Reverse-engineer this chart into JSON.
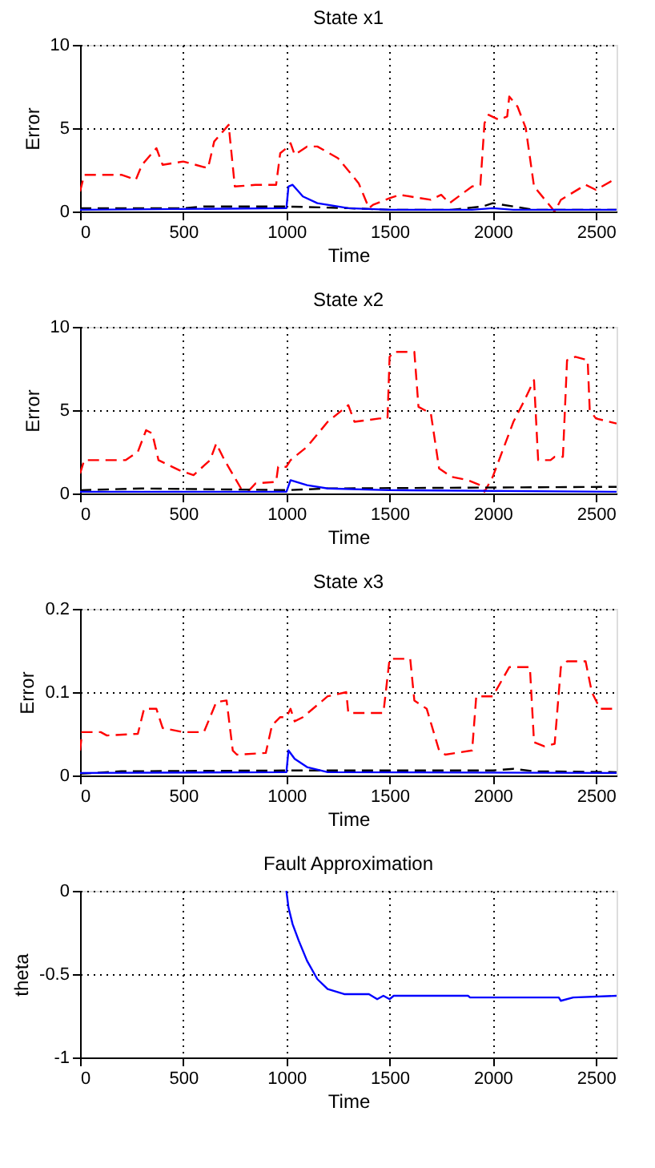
{
  "chart_data": [
    {
      "type": "line",
      "title": "State x1",
      "xlabel": "Time",
      "ylabel": "Error",
      "xlim": [
        0,
        2600
      ],
      "xticks": [
        0,
        500,
        1000,
        1500,
        2000,
        2500
      ],
      "ylim": [
        0,
        10
      ],
      "yticks": [
        0,
        5,
        10
      ],
      "grid": true,
      "marker": "none",
      "series": [
        {
          "color": "#ff0000",
          "line_style": "dashed",
          "x": [
            0,
            20,
            200,
            270,
            300,
            370,
            400,
            500,
            620,
            650,
            720,
            750,
            850,
            950,
            970,
            1000,
            1020,
            1040,
            1100,
            1150,
            1250,
            1350,
            1400,
            1420,
            1500,
            1550,
            1700,
            1750,
            1790,
            1900,
            1940,
            1960,
            1980,
            2030,
            2070,
            2080,
            2120,
            2160,
            2200,
            2280,
            2300,
            2330,
            2450,
            2500,
            2600
          ],
          "values": [
            1.2,
            2.2,
            2.2,
            1.9,
            2.8,
            3.8,
            2.8,
            3.0,
            2.6,
            4.2,
            5.2,
            1.5,
            1.6,
            1.6,
            3.5,
            3.8,
            4.1,
            3.4,
            3.9,
            3.9,
            3.2,
            1.7,
            0.2,
            0.4,
            0.8,
            1.0,
            0.7,
            1.0,
            0.5,
            1.5,
            1.6,
            5.3,
            5.8,
            5.5,
            5.7,
            6.9,
            6.3,
            5.0,
            1.5,
            0.3,
            0,
            0.7,
            1.6,
            1.3,
            2.0
          ]
        },
        {
          "color": "#000000",
          "line_style": "dashed",
          "x": [
            0,
            500,
            600,
            1000,
            1300,
            1500,
            1800,
            1950,
            2000,
            2100,
            2200,
            2600
          ],
          "values": [
            0.2,
            0.2,
            0.3,
            0.3,
            0.2,
            0.1,
            0.1,
            0.3,
            0.5,
            0.3,
            0.1,
            0.1
          ]
        },
        {
          "color": "#0000ff",
          "line_style": "solid",
          "x": [
            0,
            1000,
            1010,
            1030,
            1080,
            1150,
            1300,
            1500,
            1900,
            2000,
            2100,
            2600
          ],
          "values": [
            0.1,
            0.2,
            1.5,
            1.6,
            0.9,
            0.5,
            0.2,
            0.1,
            0.1,
            0.2,
            0.1,
            0.1
          ]
        }
      ]
    },
    {
      "type": "line",
      "title": "State x2",
      "xlabel": "Time",
      "ylabel": "Error",
      "xlim": [
        0,
        2600
      ],
      "xticks": [
        0,
        500,
        1000,
        1500,
        2000,
        2500
      ],
      "ylim": [
        0,
        10
      ],
      "yticks": [
        0,
        5,
        10
      ],
      "grid": true,
      "marker": "none",
      "series": [
        {
          "color": "#ff0000",
          "line_style": "dashed",
          "x": [
            0,
            20,
            220,
            280,
            320,
            350,
            380,
            480,
            550,
            630,
            660,
            700,
            780,
            820,
            850,
            950,
            960,
            1000,
            1020,
            1100,
            1200,
            1300,
            1330,
            1450,
            1490,
            1500,
            1520,
            1620,
            1640,
            1700,
            1740,
            1800,
            1880,
            1940,
            1960,
            2000,
            2100,
            2150,
            2200,
            2220,
            2280,
            2300,
            2340,
            2360,
            2400,
            2460,
            2470,
            2500,
            2600
          ],
          "values": [
            1.2,
            2.0,
            2.0,
            2.5,
            3.8,
            3.6,
            2.0,
            1.4,
            1.1,
            2.0,
            3.0,
            2.0,
            0.3,
            0.2,
            0.6,
            0.7,
            1.6,
            1.6,
            2.0,
            2.8,
            4.3,
            5.3,
            4.3,
            4.5,
            4.5,
            8.2,
            8.5,
            8.5,
            5.2,
            4.8,
            1.5,
            1.0,
            0.8,
            0.5,
            0.1,
            1.0,
            4.3,
            5.5,
            6.8,
            2.0,
            2.0,
            2.2,
            2.2,
            8.0,
            8.2,
            8.0,
            5.0,
            4.5,
            4.2
          ]
        },
        {
          "color": "#000000",
          "line_style": "dashed",
          "x": [
            0,
            300,
            1000,
            1200,
            2600
          ],
          "values": [
            0.2,
            0.3,
            0.2,
            0.3,
            0.4
          ]
        },
        {
          "color": "#0000ff",
          "line_style": "solid",
          "x": [
            0,
            700,
            1000,
            1020,
            1100,
            1200,
            1500,
            2600
          ],
          "values": [
            0.1,
            0.1,
            0.1,
            0.8,
            0.5,
            0.3,
            0.2,
            0.1
          ]
        }
      ]
    },
    {
      "type": "line",
      "title": "State x3",
      "xlabel": "Time",
      "ylabel": "Error",
      "xlim": [
        0,
        2600
      ],
      "xticks": [
        0,
        500,
        1000,
        1500,
        2000,
        2500
      ],
      "ylim": [
        0,
        0.2
      ],
      "yticks": [
        0,
        0.1,
        0.2
      ],
      "grid": true,
      "marker": "none",
      "series": [
        {
          "color": "#ff0000",
          "line_style": "dashed",
          "x": [
            0,
            10,
            100,
            130,
            280,
            310,
            370,
            400,
            500,
            600,
            660,
            710,
            740,
            760,
            900,
            930,
            970,
            1000,
            1020,
            1040,
            1080,
            1200,
            1290,
            1300,
            1470,
            1500,
            1600,
            1620,
            1680,
            1740,
            1770,
            1900,
            1920,
            2000,
            2080,
            2180,
            2200,
            2250,
            2300,
            2330,
            2360,
            2450,
            2480,
            2520,
            2600
          ],
          "values": [
            0.03,
            0.052,
            0.052,
            0.048,
            0.05,
            0.08,
            0.08,
            0.057,
            0.052,
            0.052,
            0.088,
            0.09,
            0.03,
            0.025,
            0.027,
            0.06,
            0.07,
            0.07,
            0.08,
            0.065,
            0.07,
            0.095,
            0.1,
            0.075,
            0.075,
            0.14,
            0.14,
            0.09,
            0.08,
            0.03,
            0.025,
            0.03,
            0.095,
            0.095,
            0.13,
            0.13,
            0.04,
            0.035,
            0.038,
            0.13,
            0.137,
            0.137,
            0.1,
            0.08,
            0.08
          ]
        },
        {
          "color": "#000000",
          "line_style": "dashed",
          "x": [
            0,
            200,
            1000,
            2000,
            2100,
            2200,
            2600
          ],
          "values": [
            0.002,
            0.005,
            0.006,
            0.006,
            0.008,
            0.005,
            0.004
          ]
        },
        {
          "color": "#0000ff",
          "line_style": "solid",
          "x": [
            0,
            1000,
            1010,
            1040,
            1100,
            1200,
            2600
          ],
          "values": [
            0.003,
            0.004,
            0.03,
            0.02,
            0.01,
            0.004,
            0.003
          ]
        }
      ]
    },
    {
      "type": "line",
      "title": "Fault Approximation",
      "xlabel": "Time",
      "ylabel": "theta",
      "xlim": [
        0,
        2600
      ],
      "xticks": [
        0,
        500,
        1000,
        1500,
        2000,
        2500
      ],
      "ylim": [
        -1,
        0
      ],
      "yticks": [
        -1,
        -0.5,
        0
      ],
      "grid": true,
      "marker": "none",
      "series": [
        {
          "color": "#0000ff",
          "line_style": "solid",
          "x": [
            1000,
            1010,
            1030,
            1060,
            1100,
            1150,
            1200,
            1280,
            1400,
            1440,
            1470,
            1500,
            1520,
            1880,
            1890,
            2320,
            2330,
            2390,
            2600
          ],
          "values": [
            0,
            -0.1,
            -0.2,
            -0.3,
            -0.42,
            -0.53,
            -0.59,
            -0.62,
            -0.62,
            -0.65,
            -0.63,
            -0.65,
            -0.63,
            -0.63,
            -0.64,
            -0.64,
            -0.66,
            -0.64,
            -0.63
          ]
        }
      ]
    }
  ]
}
